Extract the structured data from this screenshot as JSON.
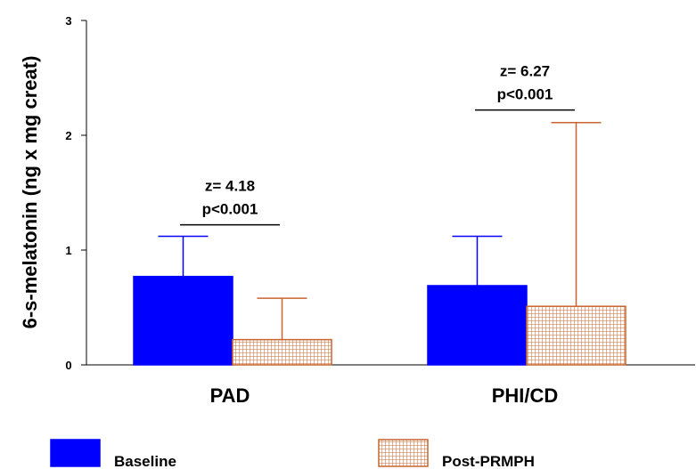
{
  "chart_data": {
    "type": "bar",
    "ylabel": "6-s-melatonin (ng x mg creat)",
    "ylim": [
      0,
      3
    ],
    "yticks": [
      "0",
      "1",
      "2",
      "3"
    ],
    "categories": [
      "PAD",
      "PHI/CD"
    ],
    "series": [
      {
        "name": "Baseline",
        "values": [
          0.77,
          0.69
        ],
        "error_upper": [
          1.12,
          1.12
        ],
        "color": "#0000ff",
        "pattern": "solid"
      },
      {
        "name": "Post-PRMPH",
        "values": [
          0.22,
          0.51
        ],
        "error_upper": [
          0.58,
          2.11
        ],
        "color": "#c8642d",
        "pattern": "grid"
      }
    ],
    "annotations": [
      {
        "category": "PAD",
        "lines": [
          "z= 4.18",
          "p<0.001"
        ],
        "y": 1.22
      },
      {
        "category": "PHI/CD",
        "lines": [
          "z= 6.27",
          "p<0.001"
        ],
        "y": 2.22
      }
    ],
    "legend": {
      "placement": "bottom"
    },
    "grid": false
  }
}
